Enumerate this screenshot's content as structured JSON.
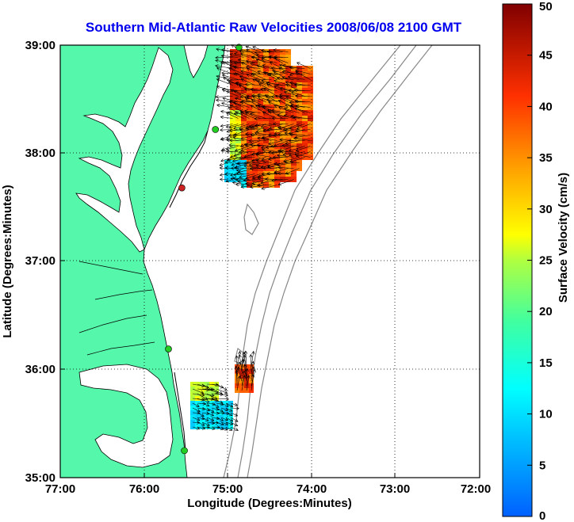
{
  "title": "Southern Mid-Atlantic Raw Velocities 2008/06/08 2100 GMT",
  "x_axis": {
    "label": "Longitude (Degrees:Minutes)",
    "ticks": [
      "77:00",
      "76:00",
      "75:00",
      "74:00",
      "73:00",
      "72:00"
    ]
  },
  "y_axis": {
    "label": "Latitude (Degrees:Minutes)",
    "ticks": [
      "39:00",
      "38:00",
      "37:00",
      "36:00",
      "35:00"
    ]
  },
  "colorbar": {
    "label": "Surface Velocity (cm/s)",
    "ticks": [
      "50",
      "45",
      "40",
      "35",
      "30",
      "25",
      "20",
      "15",
      "10",
      "5",
      "0"
    ],
    "range": [
      0,
      50
    ],
    "colormap": "jet"
  },
  "colors": {
    "title": "#0000ee",
    "land": "#55f7aa",
    "ocean": "#ffffff",
    "bathymetry": "#888888",
    "station": "#22cc22",
    "station_offline": "#cc2222"
  },
  "grid": "dotted",
  "map_extent": {
    "lon": [
      -77,
      -72
    ],
    "lat": [
      35,
      39
    ]
  },
  "stations": [
    {
      "lon": -74.87,
      "lat": 38.98,
      "status": "active"
    },
    {
      "lon": -75.15,
      "lat": 38.22,
      "status": "active"
    },
    {
      "lon": -75.55,
      "lat": 37.68,
      "status": "offline"
    },
    {
      "lon": -75.71,
      "lat": 36.19,
      "status": "active"
    },
    {
      "lon": -75.52,
      "lat": 35.25,
      "status": "active"
    }
  ]
}
